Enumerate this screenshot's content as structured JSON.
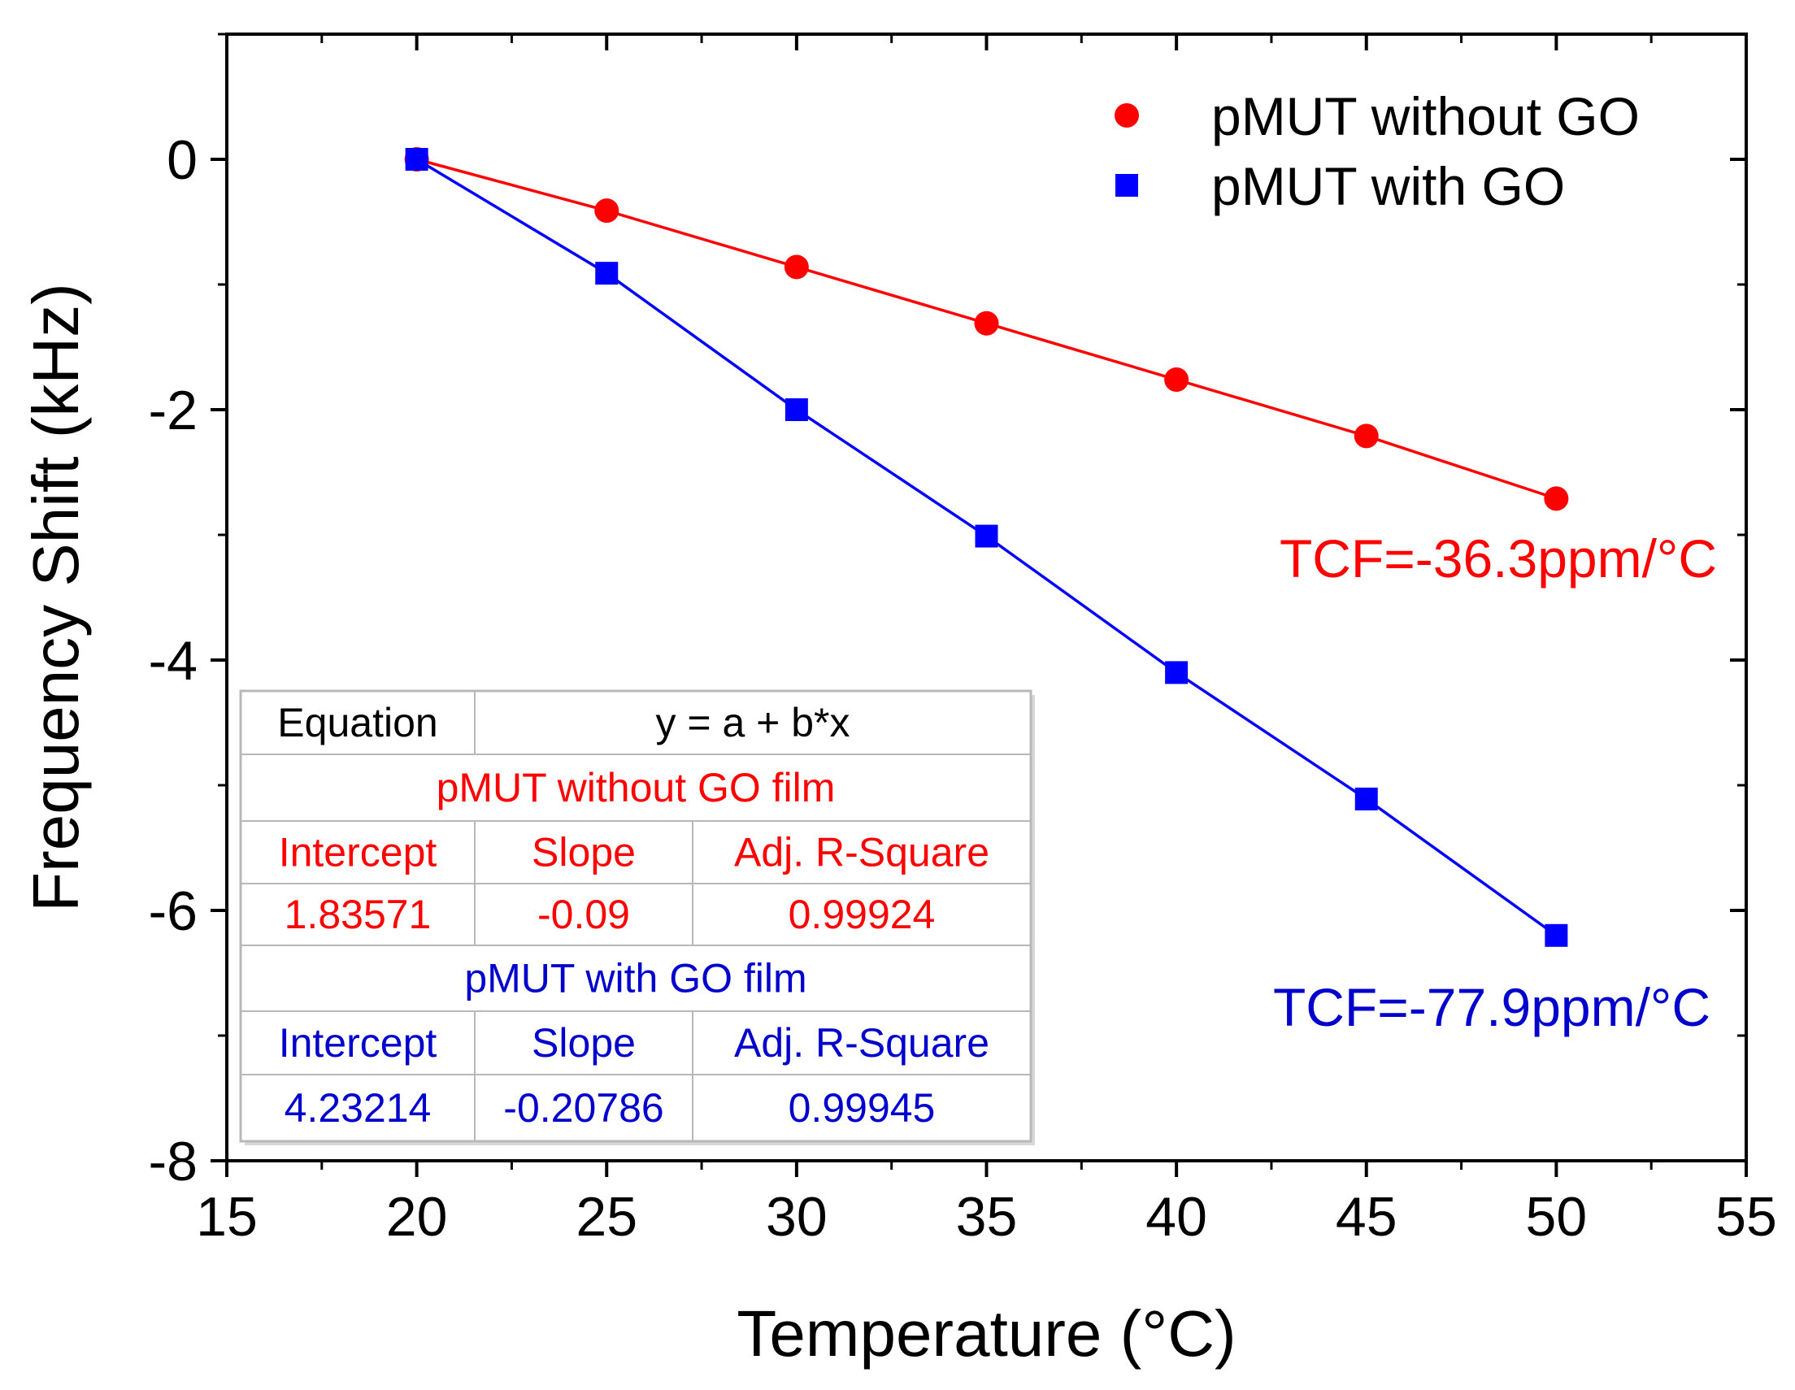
{
  "chart_data": {
    "type": "scatter",
    "xlabel": "Temperature (°C)",
    "ylabel": "Frequency Shift (kHz)",
    "xlim": [
      15,
      55
    ],
    "ylim": [
      -8,
      1
    ],
    "xticks": [
      15,
      20,
      25,
      30,
      35,
      40,
      45,
      50,
      55
    ],
    "xtick_labels": [
      "15",
      "20",
      "25",
      "30",
      "35",
      "40",
      "45",
      "50",
      "55"
    ],
    "yticks": [
      0,
      -2,
      -4,
      -6,
      -8
    ],
    "ytick_labels": [
      "0",
      "-2",
      "-4",
      "-6",
      "-8"
    ],
    "grid": false,
    "legend_position": "top-right",
    "series": [
      {
        "name": "pMUT without GO",
        "marker": "circle",
        "color": "#ff0000",
        "x": [
          20,
          25,
          30,
          35,
          40,
          45,
          50
        ],
        "y": [
          0,
          -0.41,
          -0.86,
          -1.31,
          -1.76,
          -2.21,
          -2.71
        ]
      },
      {
        "name": "pMUT with GO",
        "marker": "square",
        "color": "#0000ff",
        "x": [
          20,
          25,
          30,
          35,
          40,
          45,
          50
        ],
        "y": [
          0,
          -0.91,
          -2.0,
          -3.01,
          -4.1,
          -5.11,
          -6.2
        ]
      }
    ],
    "annotations": {
      "tcf_without_go": "TCF=-36.3ppm/°C",
      "tcf_with_go": "TCF=-77.9ppm/°C"
    },
    "fit_table": {
      "equation_label": "Equation",
      "equation": "y = a + b*x",
      "groups": [
        {
          "title": "pMUT without GO film",
          "color": "#ff0000",
          "headers": [
            "Intercept",
            "Slope",
            "Adj. R-Square"
          ],
          "values": [
            "1.83571",
            "-0.09",
            "0.99924"
          ]
        },
        {
          "title": "pMUT with GO film",
          "color": "#0000cc",
          "headers": [
            "Intercept",
            "Slope",
            "Adj. R-Square"
          ],
          "values": [
            "4.23214",
            "-0.20786",
            "0.99945"
          ]
        }
      ]
    }
  }
}
